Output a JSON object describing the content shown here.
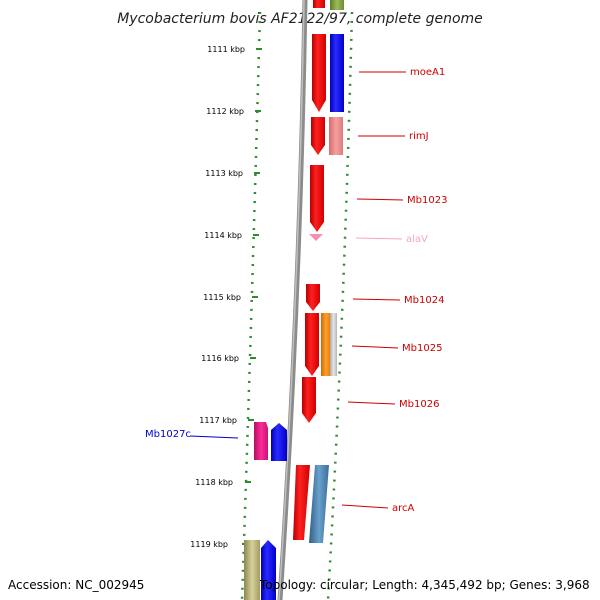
{
  "title": "Mycobacterium bovis AF2122/97, complete genome",
  "footer": {
    "accession": "Accession: NC_002945",
    "topology": "Topology: circular; Length: 4,345,492 bp; Genes: 3,968"
  },
  "ticks": [
    "1111 kbp",
    "1112 kbp",
    "1113 kbp",
    "1114 kbp",
    "1115 kbp",
    "1116 kbp",
    "1117 kbp",
    "1118 kbp",
    "1119 kbp"
  ],
  "genes": [
    {
      "name": "moeA1",
      "color": "#cc0000",
      "strand": "forward",
      "kind": "CDS"
    },
    {
      "name": "rimJ",
      "color": "#cc0000",
      "strand": "forward",
      "kind": "CDS"
    },
    {
      "name": "Mb1023",
      "color": "#cc0000",
      "strand": "forward",
      "kind": "CDS"
    },
    {
      "name": "alaV",
      "color": "#f4a6c0",
      "strand": "forward",
      "kind": "tRNA"
    },
    {
      "name": "Mb1024",
      "color": "#cc0000",
      "strand": "forward",
      "kind": "CDS"
    },
    {
      "name": "Mb1025",
      "color": "#cc0000",
      "strand": "forward",
      "kind": "CDS"
    },
    {
      "name": "Mb1026",
      "color": "#cc0000",
      "strand": "forward",
      "kind": "CDS"
    },
    {
      "name": "Mb1027c",
      "color": "#0000cc",
      "strand": "reverse",
      "kind": "CDS"
    },
    {
      "name": "arcA",
      "color": "#cc0000",
      "strand": "forward",
      "kind": "CDS"
    }
  ],
  "colors": {
    "backbone": "#8c8c8c",
    "dotted_track": "#2e8b2e",
    "forward_cds": "#ff0000",
    "reverse_cds": "#0000ff",
    "trna": "#f48fb1",
    "magenta_feature": "#e0218a",
    "steel_feature": "#4682b4",
    "orange_feature": "#ff8c00",
    "pink_feature": "#f08080",
    "khaki_feature": "#bdb76b",
    "olive_feature": "#7a9a3a"
  }
}
